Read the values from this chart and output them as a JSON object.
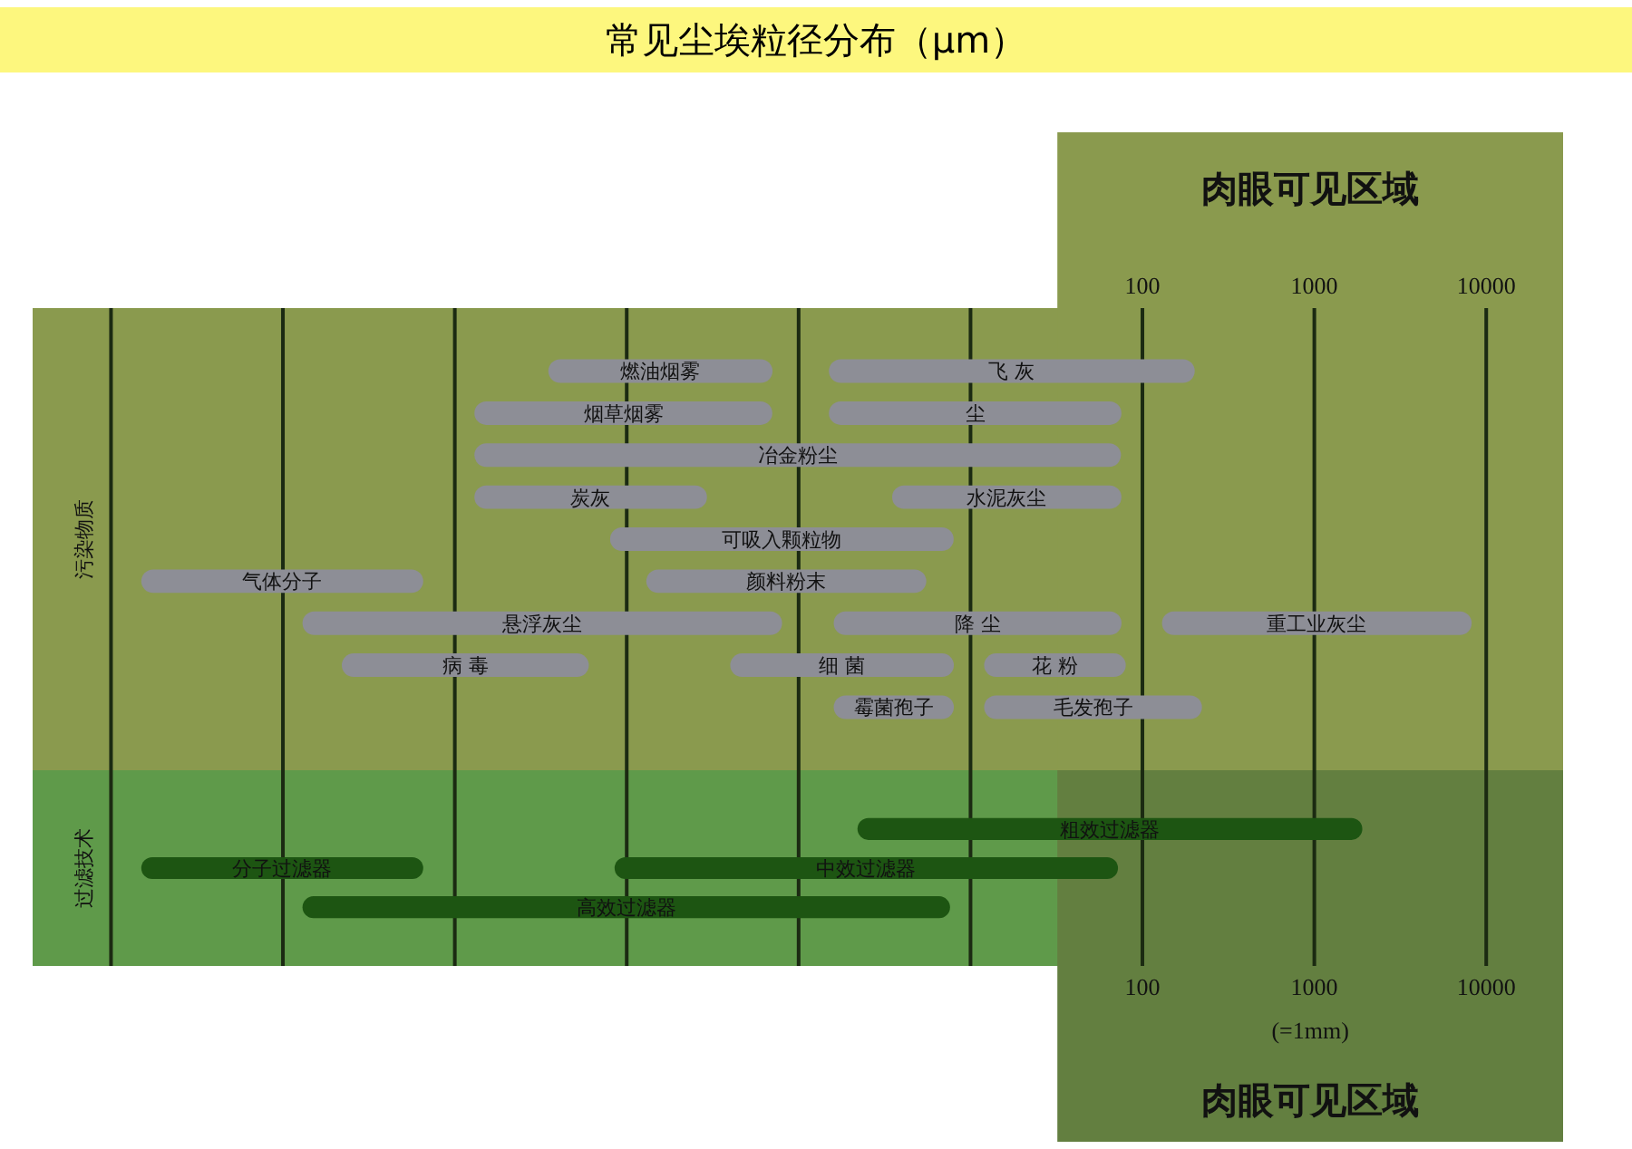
{
  "chart_data": [
    {
      "type": "bar",
      "title": "常见尘埃粒径分布（μm）",
      "orientation": "horizontal",
      "log": "x",
      "grid": "x",
      "ylabel": "污染物质",
      "xlim": [
        3.5e-05,
        28000
      ],
      "xticks": [
        {
          "value": 0.0001,
          "label": null
        },
        {
          "value": 0.001,
          "label": null
        },
        {
          "value": 0.01,
          "label": null
        },
        {
          "value": 0.1,
          "label": null
        },
        {
          "value": 1,
          "label": null
        },
        {
          "value": 10,
          "label": null
        },
        100,
        1000,
        10000
      ],
      "bands": [
        {
          "axis": "x",
          "from": 32,
          "to": 28000,
          "label": "肉眼可见区域",
          "color": "#8a9a4e"
        }
      ],
      "categories": [
        null,
        null,
        null,
        null,
        null,
        null,
        null,
        null,
        null,
        null,
        null
      ],
      "series": [
        {
          "name": "燃油烟雾",
          "color": "#8d8e96",
          "values": [
            null,
            0.67,
            null,
            null,
            null,
            null,
            null,
            null,
            null,
            null,
            null
          ],
          "base": [
            null,
            0.035,
            null,
            null,
            null,
            null,
            null,
            null,
            null,
            null,
            null
          ]
        },
        {
          "name": "飞 灰",
          "color": "#8d8e96",
          "values": [
            null,
            200,
            null,
            null,
            null,
            null,
            null,
            null,
            null,
            null,
            null
          ],
          "base": [
            null,
            1.5,
            null,
            null,
            null,
            null,
            null,
            null,
            null,
            null,
            null
          ]
        },
        {
          "name": "烟草烟雾",
          "color": "#8d8e96",
          "values": [
            null,
            null,
            0.69,
            null,
            null,
            null,
            null,
            null,
            null,
            null,
            null
          ],
          "base": [
            null,
            null,
            0.013,
            null,
            null,
            null,
            null,
            null,
            null,
            null,
            null
          ]
        },
        {
          "name": "尘",
          "color": "#8d8e96",
          "values": [
            null,
            null,
            74,
            null,
            null,
            null,
            null,
            null,
            null,
            null,
            null
          ],
          "base": [
            null,
            null,
            1.5,
            null,
            null,
            null,
            null,
            null,
            null,
            null,
            null
          ]
        },
        {
          "name": "冶金粉尘",
          "color": "#8d8e96",
          "values": [
            null,
            null,
            null,
            75,
            null,
            null,
            null,
            null,
            null,
            null,
            null
          ],
          "base": [
            null,
            null,
            null,
            0.013,
            null,
            null,
            null,
            null,
            null,
            null,
            null
          ]
        },
        {
          "name": "炭灰",
          "color": "#8d8e96",
          "values": [
            null,
            null,
            null,
            null,
            0.28,
            null,
            null,
            null,
            null,
            null,
            null
          ],
          "base": [
            null,
            null,
            null,
            null,
            0.013,
            null,
            null,
            null,
            null,
            null,
            null
          ]
        },
        {
          "name": "水泥灰尘",
          "color": "#8d8e96",
          "values": [
            null,
            null,
            null,
            null,
            72,
            null,
            null,
            null,
            null,
            null,
            null
          ],
          "base": [
            null,
            null,
            null,
            null,
            3.5,
            null,
            null,
            null,
            null,
            null,
            null
          ]
        },
        {
          "name": "可吸入颗粒物",
          "color": "#8d8e96",
          "values": [
            null,
            null,
            null,
            null,
            null,
            7.9,
            null,
            null,
            null,
            null,
            null
          ],
          "base": [
            null,
            null,
            null,
            null,
            null,
            0.08,
            null,
            null,
            null,
            null,
            null
          ]
        },
        {
          "name": "气体分子",
          "color": "#8d8e96",
          "values": [
            null,
            null,
            null,
            null,
            null,
            null,
            0.0064,
            null,
            null,
            null,
            null
          ],
          "base": [
            null,
            null,
            null,
            null,
            null,
            null,
            0.00015,
            null,
            null,
            null,
            null
          ]
        },
        {
          "name": "颜料粉末",
          "color": "#8d8e96",
          "values": [
            null,
            null,
            null,
            null,
            null,
            null,
            5.4,
            null,
            null,
            null,
            null
          ],
          "base": [
            null,
            null,
            null,
            null,
            null,
            null,
            0.13,
            null,
            null,
            null,
            null
          ]
        },
        {
          "name": "悬浮灰尘",
          "color": "#8d8e96",
          "values": [
            null,
            null,
            null,
            null,
            null,
            null,
            null,
            0.8,
            null,
            null,
            null
          ],
          "base": [
            null,
            null,
            null,
            null,
            null,
            null,
            null,
            0.0013,
            null,
            null,
            null
          ]
        },
        {
          "name": "降 尘",
          "color": "#8d8e96",
          "values": [
            null,
            null,
            null,
            null,
            null,
            null,
            null,
            74,
            null,
            null,
            null
          ],
          "base": [
            null,
            null,
            null,
            null,
            null,
            null,
            null,
            1.6,
            null,
            null,
            null
          ]
        },
        {
          "name": "重工业灰尘",
          "color": "#8d8e96",
          "values": [
            null,
            null,
            null,
            null,
            null,
            null,
            null,
            8100,
            null,
            null,
            null
          ],
          "base": [
            null,
            null,
            null,
            null,
            null,
            null,
            null,
            130,
            null,
            null,
            null
          ]
        },
        {
          "name": "病 毒",
          "color": "#8d8e96",
          "values": [
            null,
            null,
            null,
            null,
            null,
            null,
            null,
            null,
            0.058,
            null,
            null
          ],
          "base": [
            null,
            null,
            null,
            null,
            null,
            null,
            null,
            null,
            0.0022,
            null,
            null
          ]
        },
        {
          "name": "细 菌",
          "color": "#8d8e96",
          "values": [
            null,
            null,
            null,
            null,
            null,
            null,
            null,
            null,
            7.6,
            null,
            null
          ],
          "base": [
            null,
            null,
            null,
            null,
            null,
            null,
            null,
            null,
            0.4,
            null,
            null
          ]
        },
        {
          "name": "花 粉",
          "color": "#8d8e96",
          "values": [
            null,
            null,
            null,
            null,
            null,
            null,
            null,
            null,
            68,
            null,
            null
          ],
          "base": [
            null,
            null,
            null,
            null,
            null,
            null,
            null,
            null,
            12,
            null,
            null
          ]
        },
        {
          "name": "霉菌孢子",
          "color": "#8d8e96",
          "values": [
            null,
            null,
            null,
            null,
            null,
            null,
            null,
            null,
            null,
            6.4,
            null
          ],
          "base": [
            null,
            null,
            null,
            null,
            null,
            null,
            null,
            null,
            null,
            1.6,
            null
          ]
        },
        {
          "name": "毛发孢子",
          "color": "#8d8e96",
          "values": [
            null,
            null,
            null,
            null,
            null,
            null,
            null,
            null,
            null,
            210,
            null
          ],
          "base": [
            null,
            null,
            null,
            null,
            null,
            null,
            null,
            null,
            null,
            12,
            null
          ]
        }
      ]
    },
    {
      "type": "bar",
      "orientation": "horizontal",
      "log": "x",
      "grid": "x",
      "ylabel": "过滤技术",
      "xlim": [
        3.5e-05,
        28000
      ],
      "xticks": [
        {
          "value": 0.0001,
          "label": null
        },
        {
          "value": 0.001,
          "label": null
        },
        {
          "value": 0.01,
          "label": null
        },
        {
          "value": 0.1,
          "label": null
        },
        {
          "value": 1,
          "label": null
        },
        {
          "value": 10,
          "label": null
        },
        100,
        1000,
        10000
      ],
      "bands": [
        {
          "axis": "x",
          "from": 32,
          "to": 28000,
          "label": "肉眼可见区域",
          "color": "#637f40"
        }
      ],
      "annotations": [
        "(=1mm)"
      ],
      "categories": [
        null,
        null,
        null,
        null,
        null
      ],
      "series": [
        {
          "name": "粗效过滤器",
          "color": "#1d5512",
          "values": [
            null,
            1900,
            null,
            null,
            null
          ],
          "base": [
            null,
            2.2,
            null,
            null,
            null
          ]
        },
        {
          "name": "分子过滤器",
          "color": "#1d5512",
          "values": [
            null,
            null,
            0.0064,
            null,
            null
          ],
          "base": [
            null,
            null,
            0.00015,
            null,
            null
          ]
        },
        {
          "name": "中效过滤器",
          "color": "#1d5512",
          "values": [
            null,
            null,
            72,
            null,
            null
          ],
          "base": [
            null,
            null,
            0.085,
            null,
            null
          ]
        },
        {
          "name": "高效过滤器",
          "color": "#1d5512",
          "values": [
            null,
            null,
            null,
            7.6,
            null
          ],
          "base": [
            null,
            null,
            null,
            0.0013,
            null
          ]
        }
      ]
    }
  ]
}
